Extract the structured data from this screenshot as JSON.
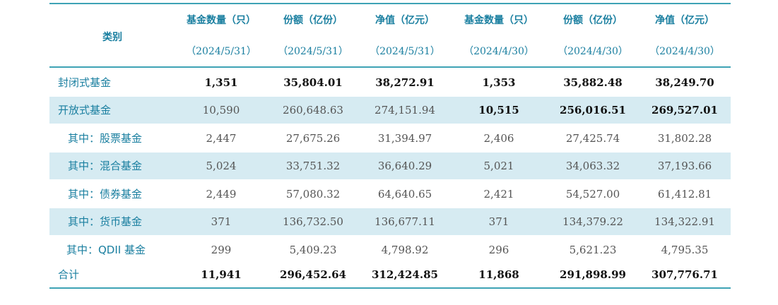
{
  "header": {
    "category": "类别",
    "columns": [
      {
        "title": "基金数量（只）",
        "date": "（2024/5/31）"
      },
      {
        "title": "份额（亿份）",
        "date": "（2024/5/31）"
      },
      {
        "title": "净值（亿元）",
        "date": "（2024/5/31）"
      },
      {
        "title": "基金数量（只）",
        "date": "（2024/4/30）"
      },
      {
        "title": "份额（亿份）",
        "date": "（2024/4/30）"
      },
      {
        "title": "净值（亿元）",
        "date": "（2024/4/30）"
      }
    ]
  },
  "rows": [
    {
      "label": "封闭式基金",
      "values": [
        "1,351",
        "35,804.01",
        "38,272.91",
        "1,353",
        "35,882.48",
        "38,249.70"
      ]
    },
    {
      "label": "开放式基金",
      "values": [
        "10,590",
        "260,648.63",
        "274,151.94",
        "10,515",
        "256,016.51",
        "269,527.01"
      ]
    },
    {
      "label": "其中：股票基金",
      "values": [
        "2,447",
        "27,675.26",
        "31,394.97",
        "2,406",
        "27,425.74",
        "31,802.28"
      ]
    },
    {
      "label": "其中：混合基金",
      "values": [
        "5,024",
        "33,751.32",
        "36,640.29",
        "5,021",
        "34,063.32",
        "37,193.66"
      ]
    },
    {
      "label": "其中：债券基金",
      "values": [
        "2,449",
        "57,080.32",
        "64,640.65",
        "2,421",
        "54,527.00",
        "61,412.81"
      ]
    },
    {
      "label": "其中：货币基金",
      "values": [
        "371",
        "136,732.50",
        "136,677.11",
        "371",
        "134,379.22",
        "134,322.91"
      ]
    },
    {
      "label": "其中：QDII 基金",
      "values": [
        "299",
        "5,409.23",
        "4,798.92",
        "296",
        "5,621.23",
        "4,795.35"
      ]
    },
    {
      "label": "合计",
      "values": [
        "11,941",
        "296,452.64",
        "312,424.85",
        "11,868",
        "291,898.99",
        "307,776.71"
      ]
    }
  ]
}
